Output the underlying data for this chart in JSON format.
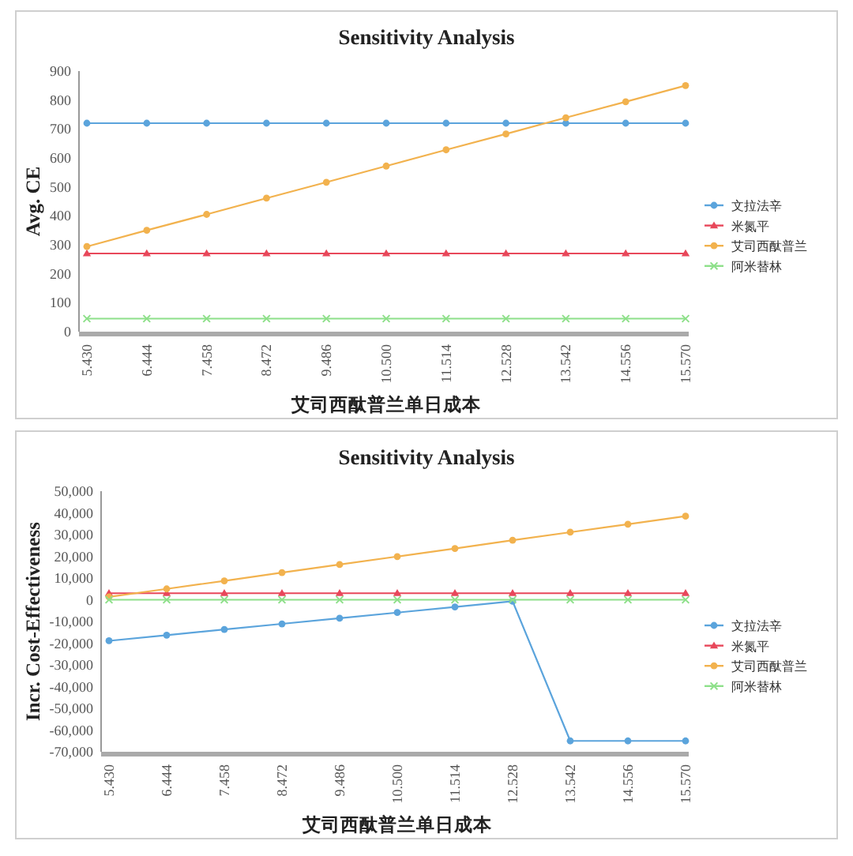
{
  "chart_data": [
    {
      "type": "line",
      "title": "Sensitivity Analysis",
      "xlabel": "艾司西酞普兰单日成本",
      "ylabel": "Avg. CE",
      "categories": [
        "5.430",
        "6.444",
        "7.458",
        "8.472",
        "9.486",
        "10.500",
        "11.514",
        "12.528",
        "13.542",
        "14.556",
        "15.570"
      ],
      "ylim": [
        0,
        900
      ],
      "yticks": [
        0,
        100,
        200,
        300,
        400,
        500,
        600,
        700,
        800,
        900
      ],
      "grid": false,
      "legend": "right",
      "series": [
        {
          "name": "文拉法辛",
          "color": "#5ba4dc",
          "marker": "circle",
          "values": [
            720,
            720,
            720,
            720,
            720,
            720,
            720,
            720,
            720,
            720,
            720
          ]
        },
        {
          "name": "米氮平",
          "color": "#e8475a",
          "marker": "triangle",
          "values": [
            270,
            270,
            270,
            270,
            270,
            270,
            270,
            270,
            270,
            270,
            270
          ]
        },
        {
          "name": "艾司西酞普兰",
          "color": "#f2b24e",
          "marker": "circle",
          "values": [
            294,
            350,
            405,
            461,
            516,
            572,
            628,
            683,
            739,
            794,
            850
          ]
        },
        {
          "name": "阿米替林",
          "color": "#8ee08a",
          "marker": "cross",
          "values": [
            45,
            45,
            45,
            45,
            45,
            45,
            45,
            45,
            45,
            45,
            45
          ]
        }
      ]
    },
    {
      "type": "line",
      "title": "Sensitivity Analysis",
      "xlabel": "艾司西酞普兰单日成本",
      "ylabel": "Incr. Cost-Effectiveness",
      "categories": [
        "5.430",
        "6.444",
        "7.458",
        "8.472",
        "9.486",
        "10.500",
        "11.514",
        "12.528",
        "13.542",
        "14.556",
        "15.570"
      ],
      "ylim": [
        -70000,
        50000
      ],
      "yticks": [
        {
          "value": -70000,
          "label": "-70,000"
        },
        {
          "value": -60000,
          "label": "-60,000"
        },
        {
          "value": -50000,
          "label": "-50,000"
        },
        {
          "value": -40000,
          "label": "-40,000"
        },
        {
          "value": -30000,
          "label": "-30,000"
        },
        {
          "value": -20000,
          "label": "-20,000"
        },
        {
          "value": -10000,
          "label": "-10,000"
        },
        0,
        {
          "value": 10000,
          "label": "10,000"
        },
        {
          "value": 20000,
          "label": "20,000"
        },
        {
          "value": 30000,
          "label": "30,000"
        },
        {
          "value": 40000,
          "label": "40,000"
        },
        {
          "value": 50000,
          "label": "50,000"
        }
      ],
      "grid": false,
      "legend": "right",
      "series": [
        {
          "name": "文拉法辛",
          "color": "#5ba4dc",
          "marker": "circle",
          "values": [
            -18900,
            -16300,
            -13700,
            -11100,
            -8500,
            -5900,
            -3300,
            -700,
            -65000,
            -65000,
            -65000
          ]
        },
        {
          "name": "米氮平",
          "color": "#e8475a",
          "marker": "triangle",
          "values": [
            3000,
            3000,
            3000,
            3000,
            3000,
            3000,
            3000,
            3000,
            3000,
            3000,
            3000
          ]
        },
        {
          "name": "艾司西酞普兰",
          "color": "#f2b24e",
          "marker": "circle",
          "values": [
            1300,
            5000,
            8700,
            12500,
            16200,
            19900,
            23600,
            27400,
            31100,
            34800,
            38500
          ]
        },
        {
          "name": "阿米替林",
          "color": "#8ee08a",
          "marker": "cross",
          "values": [
            0,
            0,
            0,
            0,
            0,
            0,
            0,
            0,
            0,
            0,
            0
          ]
        }
      ]
    }
  ]
}
